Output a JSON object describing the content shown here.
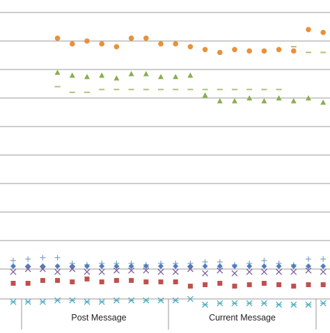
{
  "chart_data": {
    "type": "scatter",
    "title": "",
    "xlabel": "",
    "ylabel": "",
    "grid": true,
    "categories_visible": 22,
    "group_labels": [
      "Post Message",
      "Current Message"
    ],
    "series": [
      {
        "marker": "circle",
        "color": "#E8913A",
        "values": [
          null,
          null,
          null,
          8.1,
          7.9,
          8.0,
          7.9,
          7.8,
          8.1,
          8.1,
          7.9,
          7.9,
          7.8,
          7.7,
          7.6,
          7.7,
          7.65,
          7.65,
          7.7,
          7.65,
          8.4,
          8.3,
          8.6
        ]
      },
      {
        "marker": "dash",
        "color": "#A7C56E",
        "values": [
          null,
          null,
          null,
          6.4,
          6.2,
          6.2,
          6.3,
          6.3,
          6.3,
          6.3,
          6.3,
          6.3,
          6.3,
          6.3,
          6.3,
          6.3,
          6.3,
          6.3,
          6.3,
          7.8,
          7.6,
          7.6,
          7.9
        ]
      },
      {
        "marker": "triangle",
        "color": "#8AAE4B",
        "values": [
          null,
          null,
          null,
          6.9,
          6.8,
          6.75,
          6.8,
          6.7,
          6.85,
          6.85,
          6.75,
          6.75,
          6.8,
          6.1,
          5.9,
          5.9,
          6.0,
          5.9,
          6.0,
          5.9,
          6.0,
          5.85,
          5.75
        ]
      },
      {
        "marker": "plus",
        "color": "#7FA0CC",
        "values": [
          0.3,
          0.35,
          0.4,
          0.4,
          0.2,
          0.15,
          0.2,
          0.2,
          0.2,
          0.15,
          0.2,
          0.2,
          0.2,
          0.25,
          0.25,
          0.15,
          0.2,
          0.3,
          0.2,
          0.15,
          0.35,
          0.35,
          0.35
        ]
      },
      {
        "marker": "diamond",
        "color": "#4F7EBF",
        "values": [
          0.1,
          0.1,
          0.1,
          0.1,
          0.1,
          0.1,
          0.1,
          0.1,
          0.1,
          0.1,
          0.1,
          0.1,
          0.1,
          0.1,
          0.1,
          0.1,
          0.1,
          0.1,
          0.1,
          0.1,
          0.1,
          0.1,
          0.1
        ]
      },
      {
        "marker": "x",
        "color": "#7B5EA0",
        "values": [
          -0.1,
          0.0,
          0.0,
          -0.1,
          0.0,
          -0.1,
          -0.1,
          -0.05,
          -0.05,
          -0.05,
          -0.1,
          -0.1,
          0.0,
          -0.15,
          -0.05,
          -0.15,
          -0.1,
          -0.1,
          -0.1,
          -0.1,
          -0.05,
          -0.1,
          0.0
        ]
      },
      {
        "marker": "square",
        "color": "#C0504D",
        "values": [
          -0.5,
          -0.5,
          -0.4,
          -0.4,
          -0.45,
          -0.35,
          -0.45,
          -0.4,
          -0.4,
          -0.45,
          -0.45,
          -0.45,
          -0.6,
          -0.55,
          -0.5,
          -0.6,
          -0.55,
          -0.5,
          -0.55,
          -0.6,
          -0.55,
          -0.55,
          -0.55
        ]
      },
      {
        "marker": "star",
        "color": "#4BACC6",
        "values": [
          -1.15,
          -1.15,
          -1.15,
          -1.1,
          -1.1,
          -1.15,
          -1.15,
          -1.1,
          -1.1,
          -1.1,
          -1.1,
          -1.1,
          -1.05,
          -1.25,
          -1.2,
          -1.2,
          -1.2,
          -1.2,
          -1.25,
          -1.25,
          -1.25,
          -1.2,
          -1.2
        ]
      }
    ]
  }
}
